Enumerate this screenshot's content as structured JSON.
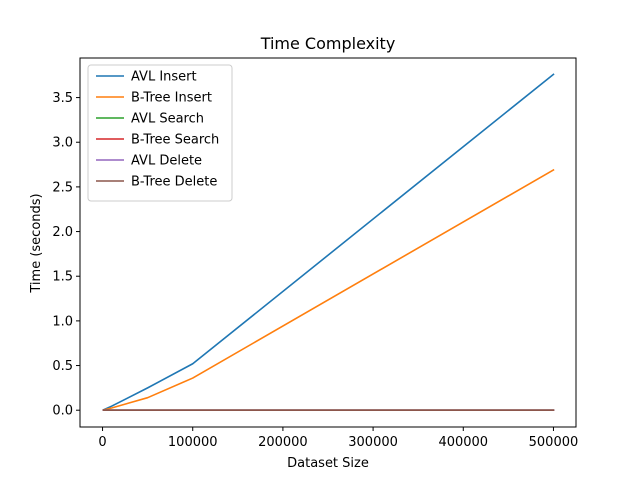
{
  "chart_data": {
    "type": "line",
    "title": "Time Complexity",
    "xlabel": "Dataset Size",
    "ylabel": "Time (seconds)",
    "xlim": [
      -25000,
      525000
    ],
    "ylim": [
      -0.188,
      3.943
    ],
    "xticks": [
      0,
      100000,
      200000,
      300000,
      400000,
      500000
    ],
    "xtick_labels": [
      "0",
      "100000",
      "200000",
      "300000",
      "400000",
      "500000"
    ],
    "yticks": [
      0.0,
      0.5,
      1.0,
      1.5,
      2.0,
      2.5,
      3.0,
      3.5
    ],
    "ytick_labels": [
      "0.0",
      "0.5",
      "1.0",
      "1.5",
      "2.0",
      "2.5",
      "3.0",
      "3.5"
    ],
    "grid": false,
    "legend_position": "top-left",
    "x": [
      1000,
      10000,
      50000,
      100000,
      500000
    ],
    "series": [
      {
        "name": "AVL Insert",
        "color": "#1f77b4",
        "values": [
          0.004,
          0.045,
          0.25,
          0.52,
          3.76
        ]
      },
      {
        "name": "B-Tree Insert",
        "color": "#ff7f0e",
        "values": [
          0.002,
          0.025,
          0.14,
          0.36,
          2.69
        ]
      },
      {
        "name": "AVL Search",
        "color": "#2ca02c",
        "values": [
          0.0,
          0.0,
          0.0,
          0.0,
          0.001
        ]
      },
      {
        "name": "B-Tree Search",
        "color": "#d62728",
        "values": [
          0.0,
          0.0,
          0.0,
          0.0,
          0.001
        ]
      },
      {
        "name": "AVL Delete",
        "color": "#9467bd",
        "values": [
          0.0,
          0.0,
          0.0,
          0.0,
          0.0
        ]
      },
      {
        "name": "B-Tree Delete",
        "color": "#8c564b",
        "values": [
          0.0,
          0.0,
          0.0,
          0.0,
          0.0
        ]
      }
    ]
  }
}
